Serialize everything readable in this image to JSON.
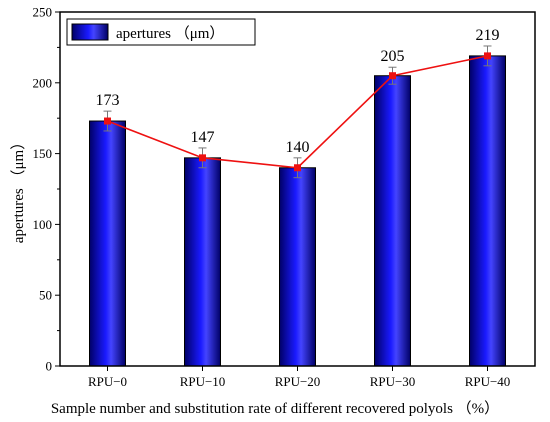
{
  "chart_data": {
    "type": "bar",
    "categories": [
      "RPU−0",
      "RPU−10",
      "RPU−20",
      "RPU−30",
      "RPU−40"
    ],
    "series": [
      {
        "name": "apertures （μm）",
        "values": [
          173,
          147,
          140,
          205,
          219
        ],
        "error": [
          7,
          7,
          7,
          6,
          7
        ]
      }
    ],
    "line_overlay": {
      "values": [
        173,
        147,
        140,
        205,
        219
      ],
      "color": "#ee1111"
    },
    "data_labels": [
      "173",
      "147",
      "140",
      "205",
      "219"
    ],
    "title": "",
    "xlabel": "Sample number and substitution rate of different recovered polyols （%）",
    "ylabel": "apertures （μm）",
    "ylim": [
      0,
      250
    ],
    "yticks": [
      0,
      50,
      100,
      150,
      200,
      250
    ],
    "grid": false,
    "legend_position": "top-left",
    "colors": {
      "bar_dark": "#000066",
      "bar_mid": "#1a1aff",
      "bar_light": "#6a6aff",
      "line": "#ee1111"
    }
  }
}
